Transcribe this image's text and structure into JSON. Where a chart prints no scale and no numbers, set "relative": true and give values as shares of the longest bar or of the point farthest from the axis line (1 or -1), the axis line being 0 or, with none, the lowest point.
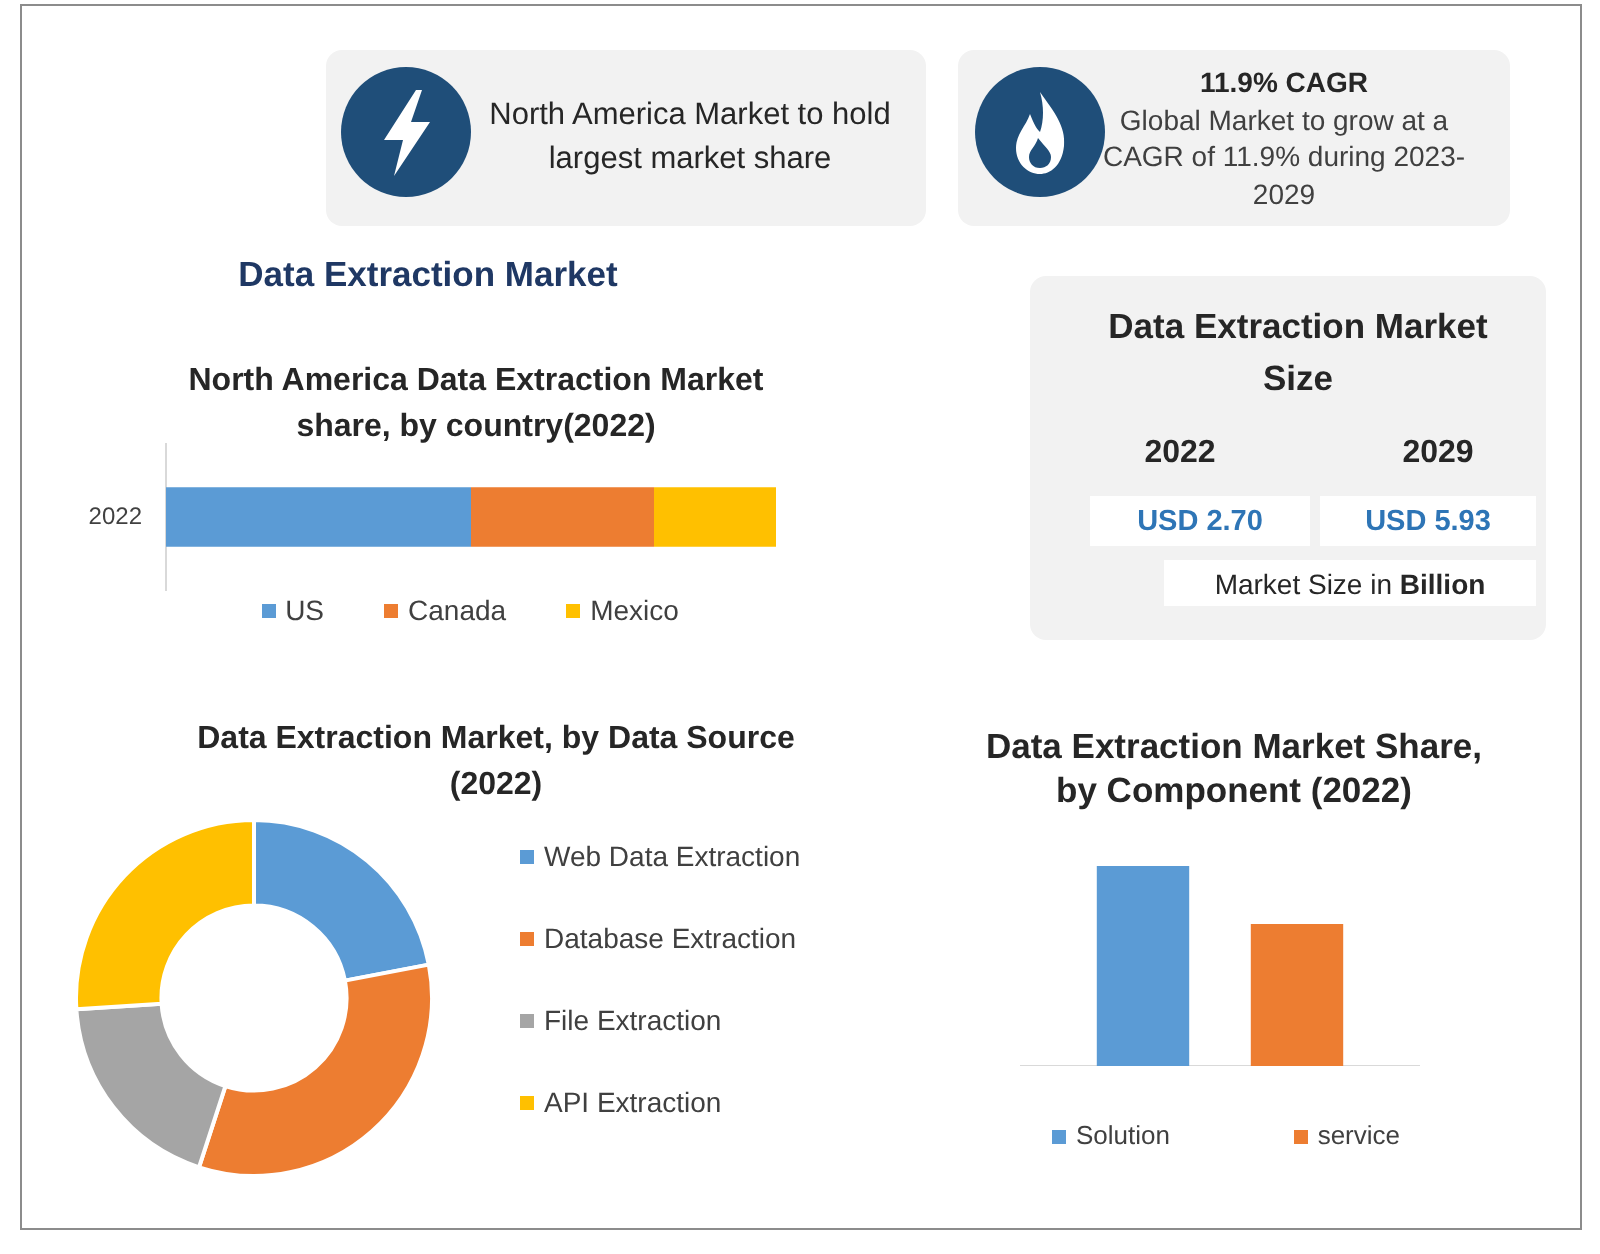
{
  "chart_data": [
    {
      "type": "other",
      "title": "North America Market to hold largest market share"
    },
    {
      "type": "other",
      "title": "11.9% CAGR",
      "annotations": [
        "Global Market to grow at a CAGR of 11.9% during 2023-2029"
      ]
    },
    {
      "type": "bar",
      "title": "Data Extraction Market",
      "subtitle": "North America Data Extraction Market share, by country(2022)",
      "orientation": "horizontal",
      "stacked": true,
      "relative": true,
      "categories": [
        "2022"
      ],
      "series": [
        {
          "name": "US",
          "color": "#5b9bd5",
          "values": [
            0.5
          ]
        },
        {
          "name": "Canada",
          "color": "#ed7d31",
          "values": [
            0.3
          ]
        },
        {
          "name": "Mexico",
          "color": "#ffc000",
          "values": [
            0.2
          ]
        }
      ],
      "legend": "bottom"
    },
    {
      "type": "other",
      "title": "Data Extraction Market Size",
      "annotations": [
        "2022",
        "2029",
        "USD 2.70",
        "USD 5.93",
        "Market Size in Billion"
      ]
    },
    {
      "type": "donut",
      "title": "Data Extraction Market, by Data Source (2022)",
      "categories": [
        "Web Data Extraction",
        "Database Extraction",
        "File Extraction",
        "API Extraction"
      ],
      "values": [
        22,
        33,
        19,
        26
      ],
      "colors": [
        "#5b9bd5",
        "#ed7d31",
        "#a5a5a5",
        "#ffc000"
      ],
      "legend": "right"
    },
    {
      "type": "bar",
      "title": "Data Extraction Market Share, by Component (2022)",
      "relative": true,
      "categories": [
        null
      ],
      "series": [
        {
          "name": "Solution",
          "color": "#5b9bd5",
          "values": [
            1
          ]
        },
        {
          "name": "service",
          "color": "#ed7d31",
          "values": [
            0.71
          ]
        }
      ],
      "legend": "bottom"
    }
  ]
}
